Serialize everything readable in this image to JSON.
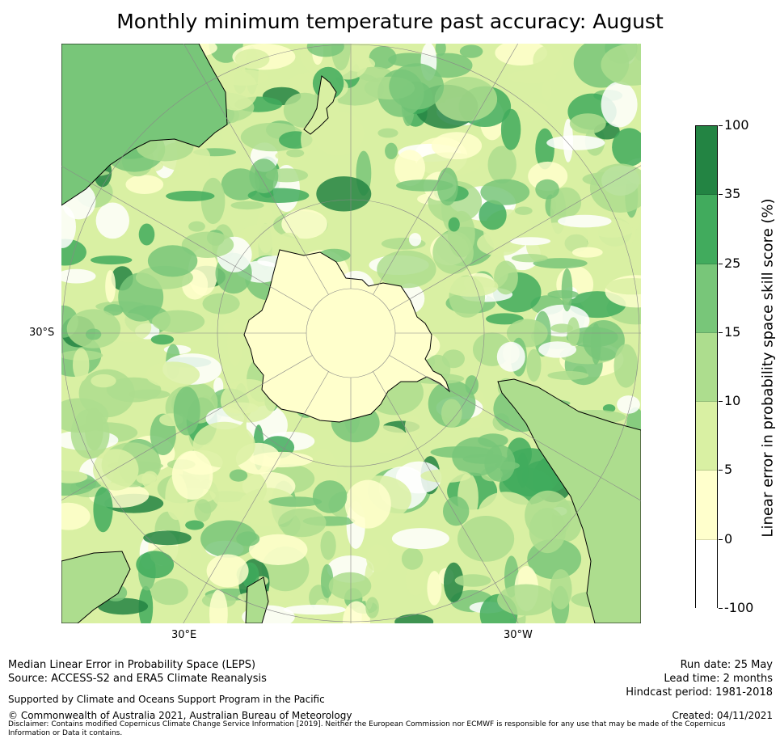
{
  "title": "Monthly minimum temperature past accuracy: August",
  "map": {
    "projection": "south-polar stereographic",
    "lat_label": "30°S",
    "lon_labels": [
      "30°E",
      "30°W"
    ],
    "colorbar": {
      "title": "Linear error in probability space skill score (%)",
      "bounds": [
        "100",
        "35",
        "25",
        "15",
        "10",
        "5",
        "0",
        "-100"
      ],
      "colors": [
        "#238443",
        "#41ab5d",
        "#78c679",
        "#addd8e",
        "#d9f0a3",
        "#ffffcc",
        "#ffffff"
      ]
    }
  },
  "footer": {
    "method": "Median Linear Error in Probability Space (LEPS)",
    "source": "Source: ACCESS-S2 and ERA5 Climate Reanalysis",
    "support": "Supported by Climate and Oceans Support Program in the Pacific",
    "copyright": "© Commonwealth of Australia 2021, Australian Bureau of Meteorology",
    "disclaimer": "Disclaimer: Contains modified Copernicus Climate Change Service Information [2019]. Neither the European Commission nor ECMWF is responsible for any use that may be made of the Copernicus Information or Data it contains.",
    "run_date": "Run date: 25 May",
    "lead_time": "Lead time: 2 months",
    "hindcast": "Hindcast period: 1981-2018",
    "created": "Created: 04/11/2021"
  }
}
